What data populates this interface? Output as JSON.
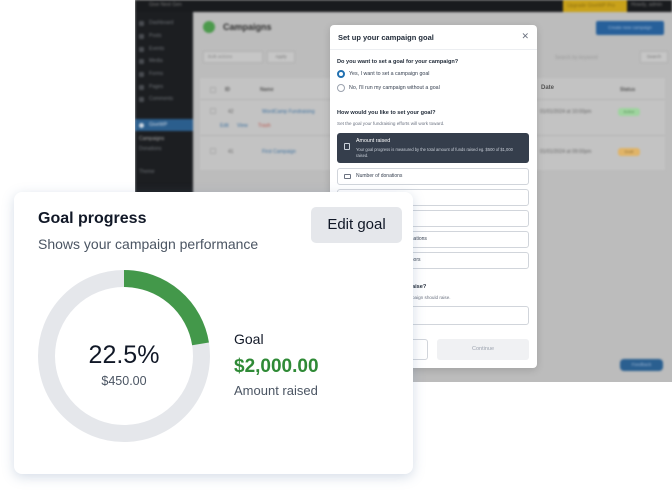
{
  "background_app": {
    "admin_bar": {
      "site_name": "Give Next Gen",
      "upgrade_label": "Upgrade GiveWP Pro",
      "howdy": "Howdy, admin"
    },
    "sidebar": {
      "items": [
        {
          "label": "Dashboard"
        },
        {
          "label": "Posts"
        },
        {
          "label": "Events"
        },
        {
          "label": "Media"
        },
        {
          "label": "Forms"
        },
        {
          "label": "Pages"
        },
        {
          "label": "Comments"
        },
        {
          "label": "GiveWP",
          "active": true
        },
        {
          "label": "Campaigns"
        },
        {
          "label": "Donations"
        },
        {
          "label": "Theme"
        }
      ]
    },
    "page_title": "Campaigns",
    "create_button": "Create new campaign",
    "bulk_actions": "Bulk actions",
    "apply_button": "Apply",
    "search_placeholder": "Search by keyword",
    "search_button": "Search",
    "table": {
      "columns": [
        "ID",
        "Name",
        "Date",
        "Status"
      ],
      "rows": [
        {
          "id": "42",
          "name": "WordCamp Fundraising",
          "date": "01/01/2024 at 10:00pm",
          "status": "Active",
          "actions": [
            "Edit",
            "View",
            "Trash"
          ]
        },
        {
          "id": "41",
          "name": "First Campaign",
          "date": "01/01/2024 at 09:00pm",
          "status": "Draft"
        }
      ]
    },
    "help_button": "Feedback",
    "colors": {
      "active_badge": "#9fd49f",
      "draft_badge": "#e0b468",
      "accent": "#2271b1"
    }
  },
  "modal": {
    "title": "Set up your campaign goal",
    "close_icon": "close-icon",
    "question1": "Do you want to set a goal for your campaign?",
    "radio_yes": "Yes, I want to set a campaign goal",
    "radio_no": "No, I'll run my campaign without a goal",
    "question2": "How would you like to set your goal?",
    "question2_sub": "Set the goal your fundraising efforts will work toward.",
    "selected_option": {
      "label": "Amount raised",
      "description": "Your goal progress is measured by the total amount of funds raised eg. $500 of $1,000 raised."
    },
    "options": [
      {
        "label": "Number of donations"
      },
      {
        "label": ""
      },
      {
        "label": "d"
      },
      {
        "label": "onations"
      },
      {
        "label": "onors"
      }
    ],
    "question3": "aise?",
    "question3_sub": "paign should raise.",
    "cancel_button": "",
    "continue_button": "Continue"
  },
  "card": {
    "title": "Goal progress",
    "subtitle": "Shows your campaign performance",
    "edit_button": "Edit goal",
    "percent_label": "22.5%",
    "raised_amount": "$450.00",
    "goal_label": "Goal",
    "goal_amount": "$2,000.00",
    "goal_caption": "Amount raised",
    "progress_fraction": 0.225,
    "colors": {
      "progress": "#43984a",
      "track": "#e5e7eb",
      "goal_amount": "#2f8a36"
    }
  }
}
